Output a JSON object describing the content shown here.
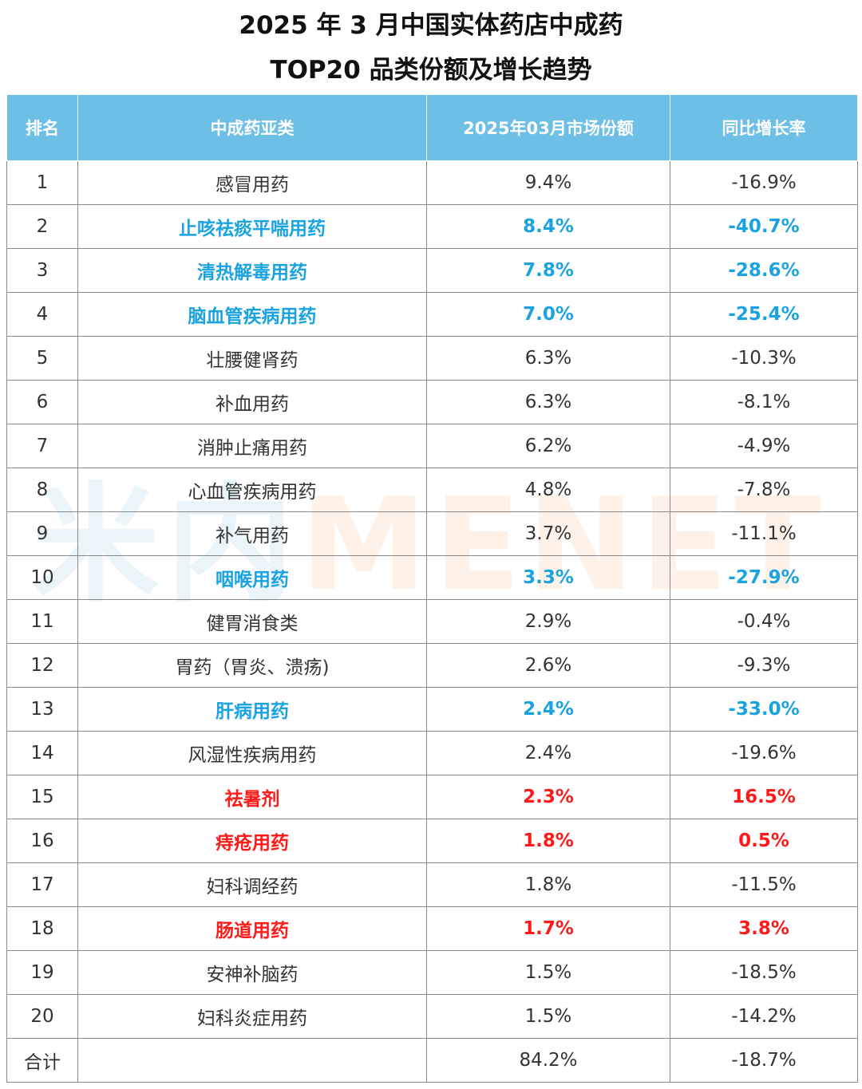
{
  "title": {
    "line1": "2025 年 3 月中国实体药店中成药",
    "line2": "TOP20 品类份额及增长趋势"
  },
  "watermark": {
    "part1": "米内",
    "part2": "MENET"
  },
  "colors": {
    "header_bg": "#6dbfe6",
    "header_text": "#ffffff",
    "highlight_decline": "#1aa3e0",
    "highlight_growth": "#ff1a1a",
    "normal_text": "#333333"
  },
  "chart_data": {
    "type": "table",
    "columns": [
      "排名",
      "中成药亚类",
      "2025年03月市场份额",
      "同比增长率"
    ],
    "rows": [
      {
        "rank": "1",
        "category": "感冒用药",
        "share": "9.4%",
        "growth": "-16.9%",
        "highlight": "none"
      },
      {
        "rank": "2",
        "category": "止咳祛痰平喘用药",
        "share": "8.4%",
        "growth": "-40.7%",
        "highlight": "blue"
      },
      {
        "rank": "3",
        "category": "清热解毒用药",
        "share": "7.8%",
        "growth": "-28.6%",
        "highlight": "blue"
      },
      {
        "rank": "4",
        "category": "脑血管疾病用药",
        "share": "7.0%",
        "growth": "-25.4%",
        "highlight": "blue"
      },
      {
        "rank": "5",
        "category": "壮腰健肾药",
        "share": "6.3%",
        "growth": "-10.3%",
        "highlight": "none"
      },
      {
        "rank": "6",
        "category": "补血用药",
        "share": "6.3%",
        "growth": "-8.1%",
        "highlight": "none"
      },
      {
        "rank": "7",
        "category": "消肿止痛用药",
        "share": "6.2%",
        "growth": "-4.9%",
        "highlight": "none"
      },
      {
        "rank": "8",
        "category": "心血管疾病用药",
        "share": "4.8%",
        "growth": "-7.8%",
        "highlight": "none"
      },
      {
        "rank": "9",
        "category": "补气用药",
        "share": "3.7%",
        "growth": "-11.1%",
        "highlight": "none"
      },
      {
        "rank": "10",
        "category": "咽喉用药",
        "share": "3.3%",
        "growth": "-27.9%",
        "highlight": "blue"
      },
      {
        "rank": "11",
        "category": "健胃消食类",
        "share": "2.9%",
        "growth": "-0.4%",
        "highlight": "none"
      },
      {
        "rank": "12",
        "category": "胃药（胃炎、溃疡)",
        "share": "2.6%",
        "growth": "-9.3%",
        "highlight": "none"
      },
      {
        "rank": "13",
        "category": "肝病用药",
        "share": "2.4%",
        "growth": "-33.0%",
        "highlight": "blue"
      },
      {
        "rank": "14",
        "category": "风湿性疾病用药",
        "share": "2.4%",
        "growth": "-19.6%",
        "highlight": "none"
      },
      {
        "rank": "15",
        "category": "祛暑剂",
        "share": "2.3%",
        "growth": "16.5%",
        "highlight": "red"
      },
      {
        "rank": "16",
        "category": "痔疮用药",
        "share": "1.8%",
        "growth": "0.5%",
        "highlight": "red"
      },
      {
        "rank": "17",
        "category": "妇科调经药",
        "share": "1.8%",
        "growth": "-11.5%",
        "highlight": "none"
      },
      {
        "rank": "18",
        "category": "肠道用药",
        "share": "1.7%",
        "growth": "3.8%",
        "highlight": "red"
      },
      {
        "rank": "19",
        "category": "安神补脑药",
        "share": "1.5%",
        "growth": "-18.5%",
        "highlight": "none"
      },
      {
        "rank": "20",
        "category": "妇科炎症用药",
        "share": "1.5%",
        "growth": "-14.2%",
        "highlight": "none"
      }
    ],
    "total": {
      "rank": "合计",
      "category": "",
      "share": "84.2%",
      "growth": "-18.7%"
    }
  }
}
